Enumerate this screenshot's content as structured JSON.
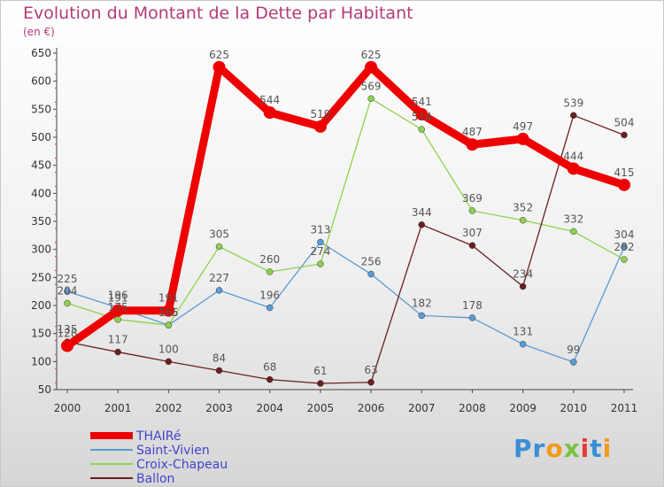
{
  "header": {
    "title": "Evolution du Montant de la Dette par Habitant",
    "subtitle": "(en €)"
  },
  "logo": {
    "text": "Proxiti",
    "letters": [
      {
        "ch": "P",
        "color": "#3a8fd6"
      },
      {
        "ch": "r",
        "color": "#3a8fd6"
      },
      {
        "ch": "o",
        "color": "#f29a1a"
      },
      {
        "ch": "x",
        "color": "#7cc242"
      },
      {
        "ch": "i",
        "color": "#e23b3b"
      },
      {
        "ch": "t",
        "color": "#3a8fd6"
      },
      {
        "ch": "i",
        "color": "#f29a1a"
      }
    ]
  },
  "chart_data": {
    "type": "line",
    "title": "Evolution du Montant de la Dette par Habitant",
    "subtitle": "(en €)",
    "xlabel": "",
    "ylabel": "",
    "x": [
      "2000",
      "2001",
      "2002",
      "2003",
      "2004",
      "2005",
      "2006",
      "2007",
      "2008",
      "2009",
      "2010",
      "2011"
    ],
    "ylim": [
      50,
      650
    ],
    "yticks": [
      50,
      100,
      150,
      200,
      250,
      300,
      350,
      400,
      450,
      500,
      550,
      600,
      650
    ],
    "grid": false,
    "legend_position": "bottom-left",
    "series": [
      {
        "name": "THAIRé",
        "color": "#ee0000",
        "width": 9,
        "values": [
          128,
          191,
          191,
          625,
          544,
          519,
          625,
          541,
          487,
          497,
          444,
          415
        ]
      },
      {
        "name": "Saint-Vivien",
        "color": "#5b9bd5",
        "width": 1.3,
        "values": [
          225,
          196,
          165,
          227,
          196,
          313,
          256,
          182,
          178,
          131,
          99,
          304
        ]
      },
      {
        "name": "Croix-Chapeau",
        "color": "#8fd14f",
        "width": 1.3,
        "values": [
          204,
          175,
          165,
          305,
          260,
          274,
          569,
          514,
          369,
          352,
          332,
          282
        ]
      },
      {
        "name": "Ballon",
        "color": "#6b1f1f",
        "width": 1.3,
        "values": [
          135,
          117,
          100,
          84,
          68,
          61,
          63,
          344,
          307,
          234,
          539,
          504
        ]
      }
    ]
  }
}
